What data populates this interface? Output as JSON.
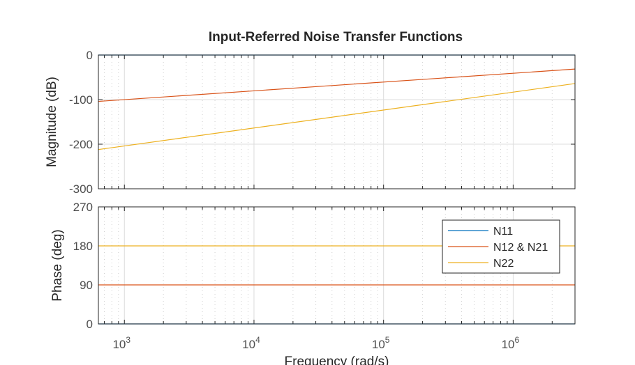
{
  "chart_data": [
    {
      "type": "line",
      "title": "Input-Referred Noise Transfer Functions",
      "xlabel": "",
      "ylabel": "Magnitude (dB)",
      "xscale": "log",
      "xlim": [
        630,
        3000000
      ],
      "ylim": [
        -300,
        0
      ],
      "yticks": [
        0,
        -100,
        -200,
        -300
      ],
      "yticklabels": [
        "0",
        "-100",
        "-200",
        "-300"
      ],
      "grid": true,
      "series": [
        {
          "name": "N11",
          "color": "#0072BD",
          "x": [
            630,
            3000000
          ],
          "y": [
            0,
            0
          ]
        },
        {
          "name": "N12 & N21",
          "color": "#D95319",
          "x": [
            630,
            3000000
          ],
          "y": [
            -104,
            -31.5
          ]
        },
        {
          "name": "N22",
          "color": "#EDB120",
          "x": [
            630,
            3000000
          ],
          "y": [
            -212,
            -64
          ]
        }
      ]
    },
    {
      "type": "line",
      "title": "",
      "xlabel": "Frequency  (rad/s)",
      "ylabel": "Phase (deg)",
      "xscale": "log",
      "xlim": [
        630,
        3000000
      ],
      "ylim": [
        0,
        270
      ],
      "yticks": [
        0,
        90,
        180,
        270
      ],
      "yticklabels": [
        "0",
        "90",
        "180",
        "270"
      ],
      "xticks": [
        1000,
        10000,
        100000,
        1000000
      ],
      "xtick_base": "10",
      "xtick_exponents": [
        "3",
        "4",
        "5",
        "6"
      ],
      "grid": true,
      "legend": {
        "placement": "top-right",
        "entries": [
          "N11",
          "N12 & N21",
          "N22"
        ]
      },
      "series": [
        {
          "name": "N11",
          "color": "#0072BD",
          "x": [
            630,
            3000000
          ],
          "y": [
            0,
            0
          ]
        },
        {
          "name": "N12 & N21",
          "color": "#D95319",
          "x": [
            630,
            3000000
          ],
          "y": [
            90,
            90
          ]
        },
        {
          "name": "N22",
          "color": "#EDB120",
          "x": [
            630,
            3000000
          ],
          "y": [
            180,
            180
          ]
        }
      ]
    }
  ]
}
